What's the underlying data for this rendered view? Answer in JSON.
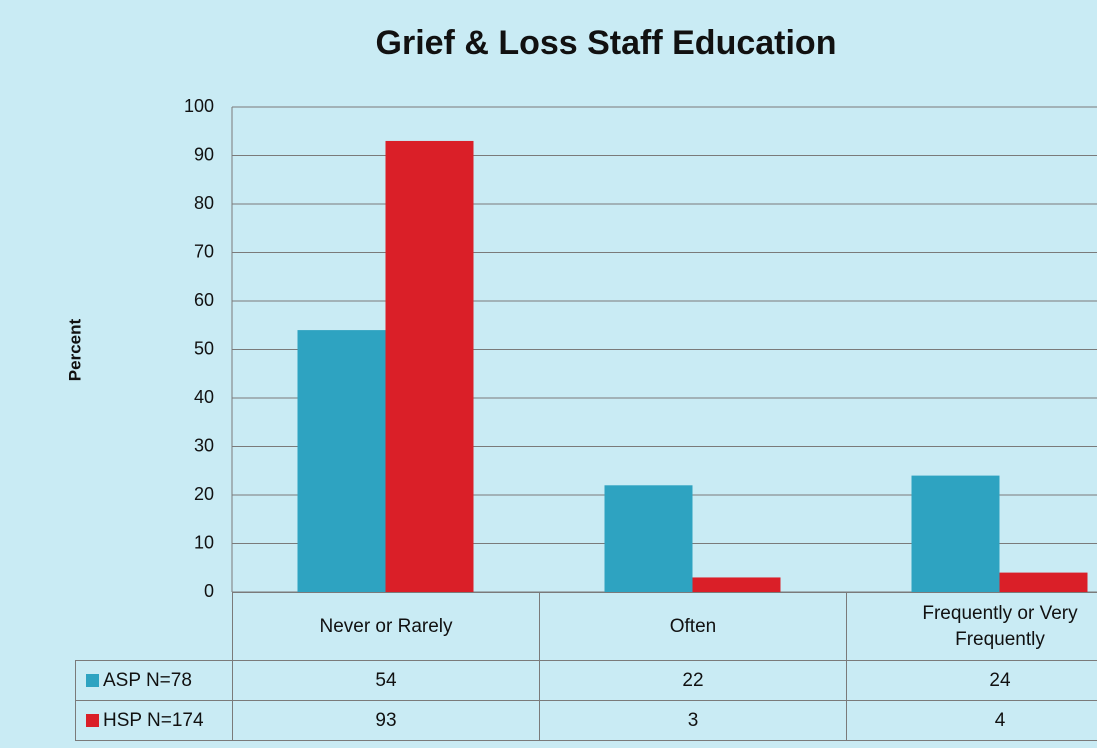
{
  "chart_data": {
    "type": "bar",
    "title": "Grief & Loss Staff Education",
    "y_label": "Percent",
    "categories": [
      "Never or Rarely",
      "Often",
      "Frequently or Very Frequently"
    ],
    "series": [
      {
        "name": "ASP N=78",
        "color": "#2ea3c1",
        "values": [
          54,
          22,
          24
        ]
      },
      {
        "name": "HSP N=174",
        "color": "#da1f28",
        "values": [
          93,
          3,
          4
        ]
      }
    ],
    "ylim": [
      0,
      100
    ],
    "yticks": [
      0,
      10,
      20,
      30,
      40,
      50,
      60,
      70,
      80,
      90,
      100
    ],
    "grid": true
  }
}
